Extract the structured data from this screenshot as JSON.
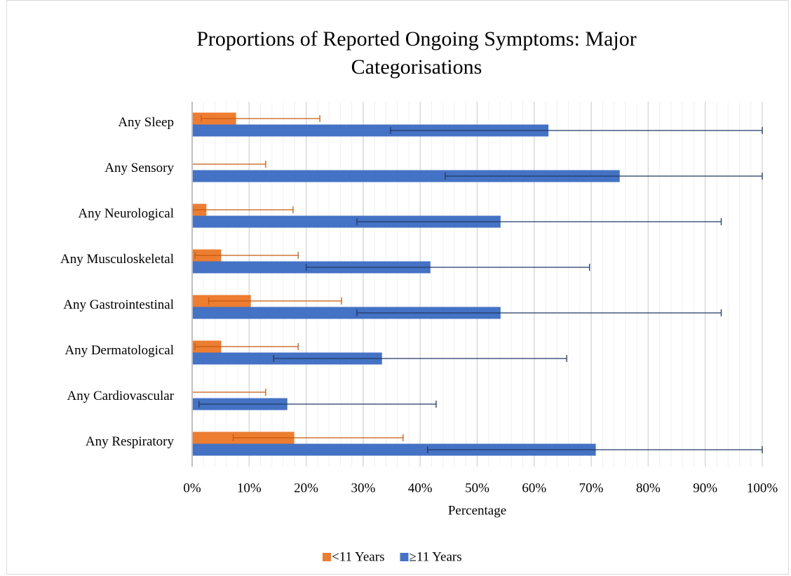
{
  "chart_data": {
    "type": "bar",
    "orientation": "horizontal",
    "title": "Proportions of Reported Ongoing Symptoms: Major Categorisations",
    "xlabel": "Percentage",
    "categories": [
      "Any Sleep",
      "Any Sensory",
      "Any Neurological",
      "Any Musculoskeletal",
      "Any Gastrointestinal",
      "Any Dermatological",
      "Any Cardiovascular",
      "Any Respiratory"
    ],
    "series": [
      {
        "name": "<11 Years",
        "color": "#ED7D31",
        "error_color": "#C55A11",
        "values": [
          7.7,
          0,
          2.5,
          5.1,
          10.3,
          5.1,
          0,
          17.9
        ],
        "ci_low": [
          1.6,
          0,
          0.1,
          0.5,
          2.9,
          0.5,
          0,
          7.2
        ],
        "ci_high": [
          22.4,
          12.9,
          17.7,
          18.6,
          26.2,
          18.6,
          12.9,
          37.0
        ]
      },
      {
        "name": "≥11 Years",
        "color": "#4472C4",
        "error_color": "#203864",
        "values": [
          62.5,
          75.0,
          54.1,
          41.8,
          54.1,
          33.3,
          16.7,
          70.8
        ],
        "ci_low": [
          34.8,
          44.4,
          28.9,
          20.0,
          28.9,
          14.3,
          1.2,
          41.3
        ],
        "ci_high": [
          100,
          100,
          92.8,
          69.7,
          92.8,
          65.7,
          42.8,
          100
        ]
      }
    ],
    "xlim": [
      0,
      100
    ],
    "xticks": [
      {
        "value": 0,
        "label": "0%"
      },
      {
        "value": 10,
        "label": "10%"
      },
      {
        "value": 20,
        "label": "20%"
      },
      {
        "value": 30,
        "label": "30%"
      },
      {
        "value": 40,
        "label": "40%"
      },
      {
        "value": 50,
        "label": "50%"
      },
      {
        "value": 60,
        "label": "60%"
      },
      {
        "value": 70,
        "label": "70%"
      },
      {
        "value": 80,
        "label": "80%"
      },
      {
        "value": 90,
        "label": "90%"
      },
      {
        "value": 100,
        "label": "100%"
      }
    ],
    "grid": true,
    "minor_grid": true,
    "legend": "bottom"
  }
}
